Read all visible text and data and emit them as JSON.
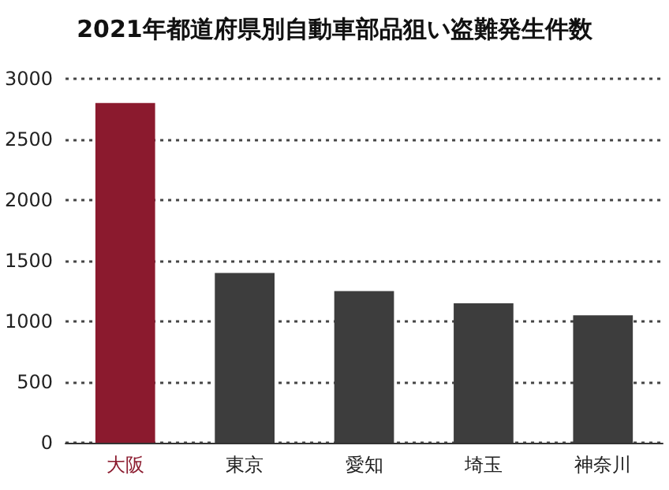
{
  "chart_data": {
    "type": "bar",
    "title": "2021年都道府県別自動車部品狙い盗難発生件数",
    "categories": [
      "大阪",
      "東京",
      "愛知",
      "埼玉",
      "神奈川"
    ],
    "values": [
      2800,
      1400,
      1250,
      1150,
      1050
    ],
    "colors": [
      "#8b1a2e",
      "#3d3d3d",
      "#3d3d3d",
      "#3d3d3d",
      "#3d3d3d"
    ],
    "ylim": [
      0,
      3000
    ],
    "yticks": [
      0,
      500,
      1000,
      1500,
      2000,
      2500,
      3000
    ],
    "grid": "y"
  }
}
